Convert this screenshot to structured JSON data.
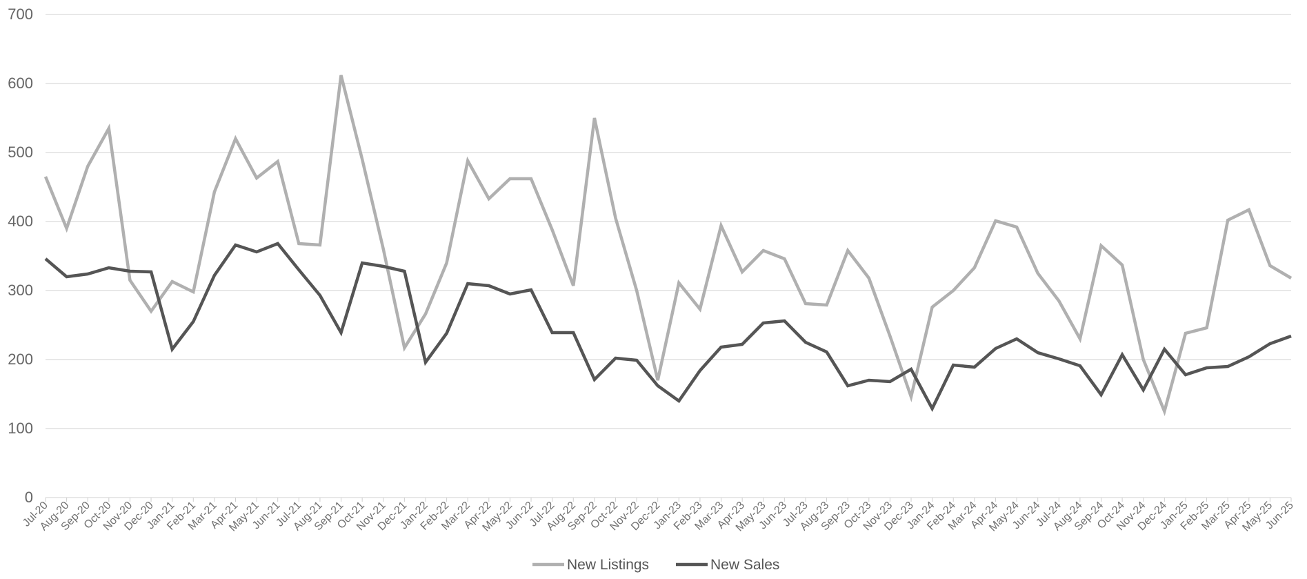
{
  "chart_data": {
    "type": "line",
    "categories": [
      "Jul-20",
      "Aug-20",
      "Sep-20",
      "Oct-20",
      "Nov-20",
      "Dec-20",
      "Jan-21",
      "Feb-21",
      "Mar-21",
      "Apr-21",
      "May-21",
      "Jun-21",
      "Jul-21",
      "Aug-21",
      "Sep-21",
      "Oct-21",
      "Nov-21",
      "Dec-21",
      "Jan-22",
      "Feb-22",
      "Mar-22",
      "Apr-22",
      "May-22",
      "Jun-22",
      "Jul-22",
      "Aug-22",
      "Sep-22",
      "Oct-22",
      "Nov-22",
      "Dec-22",
      "Jan-23",
      "Feb-23",
      "Mar-23",
      "Apr-23",
      "May-23",
      "Jun-23",
      "Jul-23",
      "Aug-23",
      "Sep-23",
      "Oct-23",
      "Nov-23",
      "Dec-23",
      "Jan-24",
      "Feb-24",
      "Mar-24",
      "Apr-24",
      "May-24",
      "Jun-24",
      "Jul-24",
      "Aug-24",
      "Sep-24",
      "Oct-24",
      "Nov-24",
      "Dec-24",
      "Jan-25",
      "Feb-25",
      "Mar-25",
      "Apr-25",
      "May-25",
      "Jun-25"
    ],
    "series": [
      {
        "name": "New Listings",
        "color": "#b0b0b0",
        "values": [
          465,
          390,
          480,
          535,
          315,
          270,
          313,
          298,
          443,
          520,
          463,
          487,
          368,
          366,
          612,
          490,
          360,
          217,
          266,
          340,
          488,
          433,
          462,
          462,
          388,
          307,
          550,
          405,
          300,
          170,
          311,
          273,
          394,
          327,
          358,
          346,
          281,
          279,
          358,
          318,
          234,
          146,
          276,
          300,
          333,
          401,
          392,
          325,
          285,
          230,
          365,
          337,
          200,
          125,
          238,
          246,
          402,
          417,
          336,
          318
        ]
      },
      {
        "name": "New Sales",
        "color": "#555555",
        "values": [
          346,
          320,
          324,
          333,
          328,
          327,
          215,
          255,
          322,
          366,
          356,
          368,
          330,
          293,
          239,
          340,
          335,
          328,
          196,
          238,
          310,
          307,
          295,
          301,
          239,
          239,
          171,
          202,
          199,
          162,
          140,
          184,
          218,
          222,
          253,
          256,
          225,
          211,
          162,
          170,
          168,
          186,
          129,
          192,
          189,
          216,
          230,
          210,
          201,
          191,
          149,
          207,
          156,
          215,
          178,
          188,
          190,
          204,
          223,
          234
        ]
      }
    ],
    "ylim": [
      0,
      700
    ],
    "yticks": [
      0,
      100,
      200,
      300,
      400,
      500,
      600,
      700
    ],
    "title": "",
    "xlabel": "",
    "ylabel": "",
    "grid": true,
    "legend": "bottom-center"
  }
}
